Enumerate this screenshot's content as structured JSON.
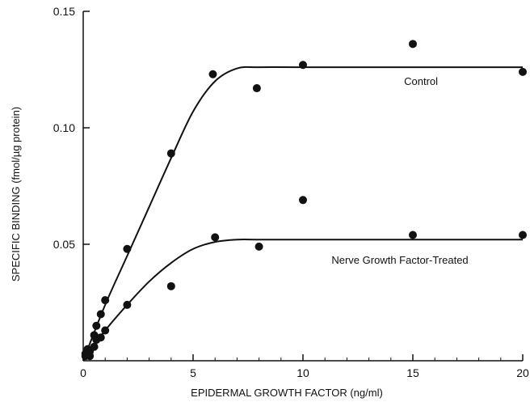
{
  "chart_data": {
    "type": "scatter",
    "title": "",
    "xlabel": "EPIDERMAL GROWTH FACTOR (ng/ml)",
    "ylabel": "SPECIFIC BINDING (fmol/µg protein)",
    "xlim": [
      0,
      20
    ],
    "ylim": [
      0,
      0.15
    ],
    "x_ticks": [
      "0",
      "5",
      "10",
      "15",
      "20"
    ],
    "y_ticks": [
      "0.05",
      "0.10",
      "0.15"
    ],
    "grid": false,
    "series": [
      {
        "name": "Control",
        "points": [
          {
            "x": 0.1,
            "y": 0.003
          },
          {
            "x": 0.2,
            "y": 0.005
          },
          {
            "x": 0.3,
            "y": 0.004
          },
          {
            "x": 0.5,
            "y": 0.011
          },
          {
            "x": 0.6,
            "y": 0.015
          },
          {
            "x": 0.8,
            "y": 0.02
          },
          {
            "x": 1.0,
            "y": 0.026
          },
          {
            "x": 2.0,
            "y": 0.048
          },
          {
            "x": 4.0,
            "y": 0.089
          },
          {
            "x": 5.9,
            "y": 0.123
          },
          {
            "x": 7.9,
            "y": 0.117
          },
          {
            "x": 10.0,
            "y": 0.127
          },
          {
            "x": 15.0,
            "y": 0.136
          },
          {
            "x": 20.0,
            "y": 0.124
          }
        ],
        "fit_curve": [
          [
            0,
            0.0
          ],
          [
            1,
            0.024
          ],
          [
            2,
            0.045
          ],
          [
            3,
            0.066
          ],
          [
            4,
            0.087
          ],
          [
            5,
            0.107
          ],
          [
            6,
            0.12
          ],
          [
            7,
            0.1255
          ],
          [
            8,
            0.126
          ],
          [
            10,
            0.126
          ],
          [
            15,
            0.126
          ],
          [
            20,
            0.126
          ]
        ]
      },
      {
        "name": "Nerve Growth Factor-Treated",
        "points": [
          {
            "x": 0.1,
            "y": 0.002
          },
          {
            "x": 0.2,
            "y": 0.003
          },
          {
            "x": 0.3,
            "y": 0.002
          },
          {
            "x": 0.5,
            "y": 0.006
          },
          {
            "x": 0.6,
            "y": 0.009
          },
          {
            "x": 0.8,
            "y": 0.01
          },
          {
            "x": 1.0,
            "y": 0.013
          },
          {
            "x": 2.0,
            "y": 0.024
          },
          {
            "x": 4.0,
            "y": 0.032
          },
          {
            "x": 6.0,
            "y": 0.053
          },
          {
            "x": 8.0,
            "y": 0.049
          },
          {
            "x": 10.0,
            "y": 0.069
          },
          {
            "x": 15.0,
            "y": 0.054
          },
          {
            "x": 20.0,
            "y": 0.054
          }
        ],
        "fit_curve": [
          [
            0,
            0.0
          ],
          [
            1,
            0.013
          ],
          [
            2,
            0.024
          ],
          [
            3,
            0.034
          ],
          [
            4,
            0.042
          ],
          [
            5,
            0.048
          ],
          [
            6,
            0.051
          ],
          [
            7,
            0.052
          ],
          [
            8,
            0.052
          ],
          [
            10,
            0.052
          ],
          [
            15,
            0.052
          ],
          [
            20,
            0.052
          ]
        ]
      }
    ]
  }
}
